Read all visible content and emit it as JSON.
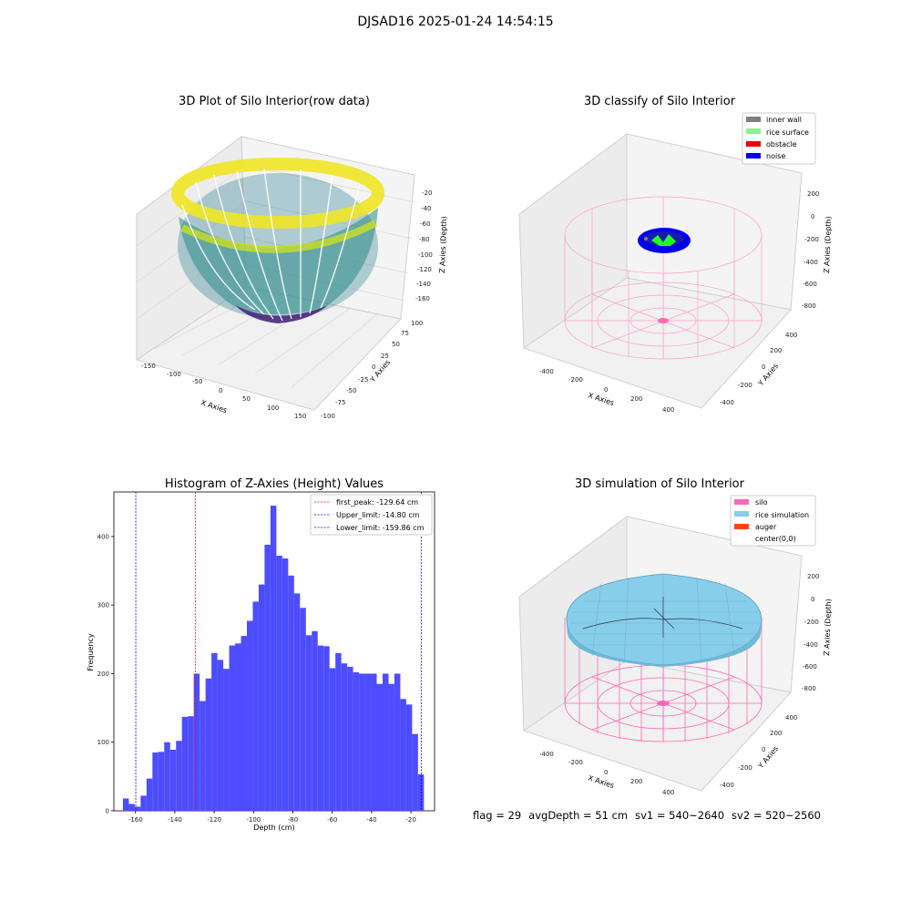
{
  "figure": {
    "title": "DJSAD16 2025-01-24 14:54:15"
  },
  "panels": {
    "raw": {
      "title": "3D Plot of Silo Interior(row data)",
      "xlabel": "X Axies",
      "ylabel": "Y Axies",
      "zlabel": "Z Axies (Depth)",
      "xticks": [
        "-150",
        "-100",
        "-50",
        "0",
        "50",
        "100",
        "150"
      ],
      "yticks": [
        "-100",
        "-75",
        "-50",
        "-25",
        "0",
        "25",
        "50",
        "75",
        "100"
      ],
      "zticks": [
        "-20",
        "-40",
        "-60",
        "-80",
        "-100",
        "-120",
        "-140",
        "-160"
      ],
      "colormap": "viridis"
    },
    "classify": {
      "title": "3D classify of Silo Interior",
      "xlabel": "X Axies",
      "ylabel": "Y Axies",
      "zlabel": "Z Axies (Depth)",
      "xticks": [
        "-400",
        "-200",
        "0",
        "200",
        "400"
      ],
      "yticks": [
        "-400",
        "-200",
        "0",
        "200",
        "400"
      ],
      "zticks": [
        "200",
        "0",
        "-200",
        "-400",
        "-600",
        "-800"
      ],
      "legend": [
        {
          "label": "inner wall",
          "color": "#808080"
        },
        {
          "label": "rice surface",
          "color": "#90ee90"
        },
        {
          "label": "obstacle",
          "color": "#ff0000"
        },
        {
          "label": "noise",
          "color": "#0000ee"
        }
      ]
    },
    "simulation": {
      "title": "3D simulation of Silo Interior",
      "xlabel": "X Axies",
      "ylabel": "Y Axies",
      "zlabel": "Z Axies (Depth)",
      "xticks": [
        "-400",
        "-200",
        "0",
        "200",
        "400"
      ],
      "yticks": [
        "-400",
        "-200",
        "0",
        "200",
        "400"
      ],
      "zticks": [
        "200",
        "0",
        "-200",
        "-400",
        "-600",
        "-800"
      ],
      "legend": [
        {
          "label": "silo",
          "color": "#ff69b4"
        },
        {
          "label": "rice simulation",
          "color": "#87ceeb"
        },
        {
          "label": "auger",
          "color": "#ff4500"
        },
        {
          "label": "center(0,0)",
          "color": "#ffffff"
        }
      ]
    }
  },
  "chart_data": {
    "type": "bar",
    "title": "Histogram of Z-Axies (Height) Values",
    "xlabel": "Depth (cm)",
    "ylabel": "Frequency",
    "xlim": [
      -171,
      -8
    ],
    "ylim": [
      0,
      465
    ],
    "xticks": [
      -160,
      -140,
      -120,
      -100,
      -80,
      -60,
      -40,
      -20
    ],
    "yticks": [
      0,
      100,
      200,
      300,
      400
    ],
    "bar_color": "#4d4dff",
    "bin_start": -166.4,
    "bin_width": 3.0,
    "values": [
      18,
      10,
      6,
      22,
      47,
      85,
      86,
      100,
      89,
      102,
      137,
      138,
      200,
      160,
      193,
      230,
      220,
      207,
      241,
      244,
      255,
      277,
      305,
      330,
      388,
      445,
      372,
      368,
      343,
      317,
      296,
      256,
      262,
      241,
      240,
      208,
      230,
      215,
      210,
      202,
      200,
      200,
      200,
      185,
      200,
      185,
      200,
      163,
      155,
      112,
      53
    ],
    "vlines": [
      {
        "x": -129.64,
        "label": "first_peak: -129.64 cm",
        "color": "#ff0000"
      },
      {
        "x": -14.8,
        "label": "Upper_limit: -14.80 cm",
        "color": "#0000cc"
      },
      {
        "x": -159.86,
        "label": "Lower_limit: -159.86 cm",
        "color": "#0000cc"
      }
    ]
  },
  "footer": {
    "flag": "flag = 29",
    "avg_depth": "avgDepth = 51 cm",
    "sv1": "sv1 = 540~2640",
    "sv2": "sv2 = 520~2560"
  }
}
